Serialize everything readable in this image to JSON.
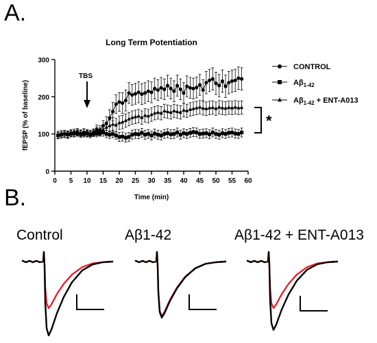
{
  "panel_a_label": "A.",
  "panel_b_label": "B.",
  "chart_data": {
    "type": "line",
    "title": "Long Term Potentiation",
    "xlabel": "Time (min)",
    "ylabel": "fEPSP (% of baseline)",
    "xlim": [
      0,
      60
    ],
    "ylim": [
      0,
      300
    ],
    "xticks": [
      0,
      5,
      10,
      15,
      20,
      25,
      30,
      35,
      40,
      45,
      50,
      55,
      60
    ],
    "yticks": [
      0,
      100,
      200,
      300
    ],
    "grid": false,
    "legend_position": "right",
    "annotations": {
      "tbs_label": "TBS",
      "tbs_time": 10,
      "significance": "*"
    },
    "series": [
      {
        "name": "CONTROL",
        "marker": "circle",
        "x": [
          1,
          2,
          3,
          4,
          5,
          6,
          7,
          8,
          9,
          10,
          11,
          12,
          13,
          14,
          15,
          16,
          17,
          18,
          19,
          20,
          21,
          22,
          23,
          24,
          25,
          26,
          27,
          28,
          29,
          30,
          31,
          32,
          33,
          34,
          35,
          36,
          37,
          38,
          39,
          40,
          41,
          42,
          43,
          44,
          45,
          46,
          47,
          48,
          49,
          50,
          51,
          52,
          53,
          54,
          55,
          56,
          57,
          58
        ],
        "y": [
          97,
          99,
          100,
          98,
          102,
          103,
          105,
          101,
          104,
          102,
          100,
          104,
          112,
          110,
          122,
          128,
          143,
          160,
          180,
          186,
          183,
          190,
          210,
          205,
          208,
          212,
          207,
          210,
          215,
          212,
          222,
          218,
          224,
          220,
          230,
          222,
          215,
          230,
          220,
          210,
          228,
          224,
          222,
          225,
          232,
          218,
          238,
          244,
          248,
          236,
          230,
          242,
          228,
          238,
          242,
          244,
          250,
          248
        ],
        "err": [
          10,
          10,
          10,
          10,
          10,
          10,
          10,
          10,
          10,
          10,
          10,
          10,
          12,
          12,
          14,
          18,
          22,
          25,
          25,
          25,
          28,
          28,
          28,
          28,
          28,
          28,
          28,
          28,
          28,
          28,
          28,
          28,
          28,
          28,
          28,
          28,
          28,
          28,
          28,
          28,
          28,
          28,
          28,
          28,
          28,
          28,
          30,
          30,
          30,
          30,
          30,
          30,
          30,
          30,
          30,
          30,
          30,
          30
        ]
      },
      {
        "name": "Aβ1-42",
        "marker": "square",
        "x": [
          1,
          2,
          3,
          4,
          5,
          6,
          7,
          8,
          9,
          10,
          11,
          12,
          13,
          14,
          15,
          16,
          17,
          18,
          19,
          20,
          21,
          22,
          23,
          24,
          25,
          26,
          27,
          28,
          29,
          30,
          31,
          32,
          33,
          34,
          35,
          36,
          37,
          38,
          39,
          40,
          41,
          42,
          43,
          44,
          45,
          46,
          47,
          48,
          49,
          50,
          51,
          52,
          53,
          54,
          55,
          56,
          57,
          58
        ],
        "y": [
          96,
          98,
          100,
          99,
          100,
          101,
          102,
          100,
          100,
          102,
          98,
          101,
          100,
          102,
          104,
          100,
          98,
          100,
          96,
          92,
          93,
          90,
          92,
          98,
          100,
          99,
          103,
          98,
          100,
          96,
          101,
          98,
          96,
          100,
          102,
          99,
          100,
          104,
          98,
          102,
          100,
          103,
          105,
          104,
          100,
          101,
          102,
          99,
          104,
          100,
          98,
          102,
          100,
          103,
          104,
          101,
          100,
          104
        ],
        "err": [
          8,
          8,
          8,
          8,
          8,
          8,
          8,
          8,
          8,
          8,
          8,
          8,
          8,
          8,
          10,
          10,
          10,
          10,
          10,
          12,
          12,
          12,
          12,
          12,
          12,
          12,
          12,
          12,
          12,
          12,
          12,
          12,
          12,
          12,
          12,
          12,
          12,
          12,
          12,
          12,
          12,
          12,
          12,
          12,
          12,
          12,
          12,
          12,
          12,
          12,
          12,
          12,
          12,
          12,
          12,
          12,
          12,
          12
        ]
      },
      {
        "name": "Aβ1-42 + ENT-A013",
        "marker": "triangle",
        "x": [
          1,
          2,
          3,
          4,
          5,
          6,
          7,
          8,
          9,
          10,
          11,
          12,
          13,
          14,
          15,
          16,
          17,
          18,
          19,
          20,
          21,
          22,
          23,
          24,
          25,
          26,
          27,
          28,
          29,
          30,
          31,
          32,
          33,
          34,
          35,
          36,
          37,
          38,
          39,
          40,
          41,
          42,
          43,
          44,
          45,
          46,
          47,
          48,
          49,
          50,
          51,
          52,
          53,
          54,
          55,
          56,
          57,
          58
        ],
        "y": [
          96,
          98,
          100,
          98,
          101,
          100,
          104,
          102,
          105,
          100,
          101,
          103,
          108,
          106,
          112,
          118,
          122,
          126,
          124,
          130,
          132,
          136,
          140,
          144,
          146,
          148,
          144,
          150,
          148,
          152,
          156,
          158,
          156,
          162,
          160,
          158,
          162,
          160,
          158,
          164,
          162,
          166,
          168,
          170,
          172,
          169,
          168,
          170,
          171,
          168,
          172,
          170,
          169,
          171,
          170,
          172,
          170,
          171
        ],
        "err": [
          8,
          8,
          8,
          8,
          8,
          8,
          8,
          8,
          8,
          8,
          8,
          8,
          10,
          10,
          12,
          14,
          16,
          18,
          18,
          18,
          18,
          18,
          18,
          18,
          18,
          18,
          18,
          18,
          18,
          18,
          18,
          18,
          18,
          18,
          18,
          18,
          18,
          18,
          18,
          18,
          18,
          18,
          18,
          18,
          18,
          18,
          18,
          18,
          18,
          18,
          18,
          18,
          18,
          18,
          18,
          18,
          18,
          18
        ]
      }
    ]
  },
  "traces": {
    "conditions": [
      "Control",
      "Aβ1-42",
      "Aβ1-42 + ENT-A013"
    ],
    "trace_colors": [
      "#000000",
      "#e8202a"
    ]
  }
}
